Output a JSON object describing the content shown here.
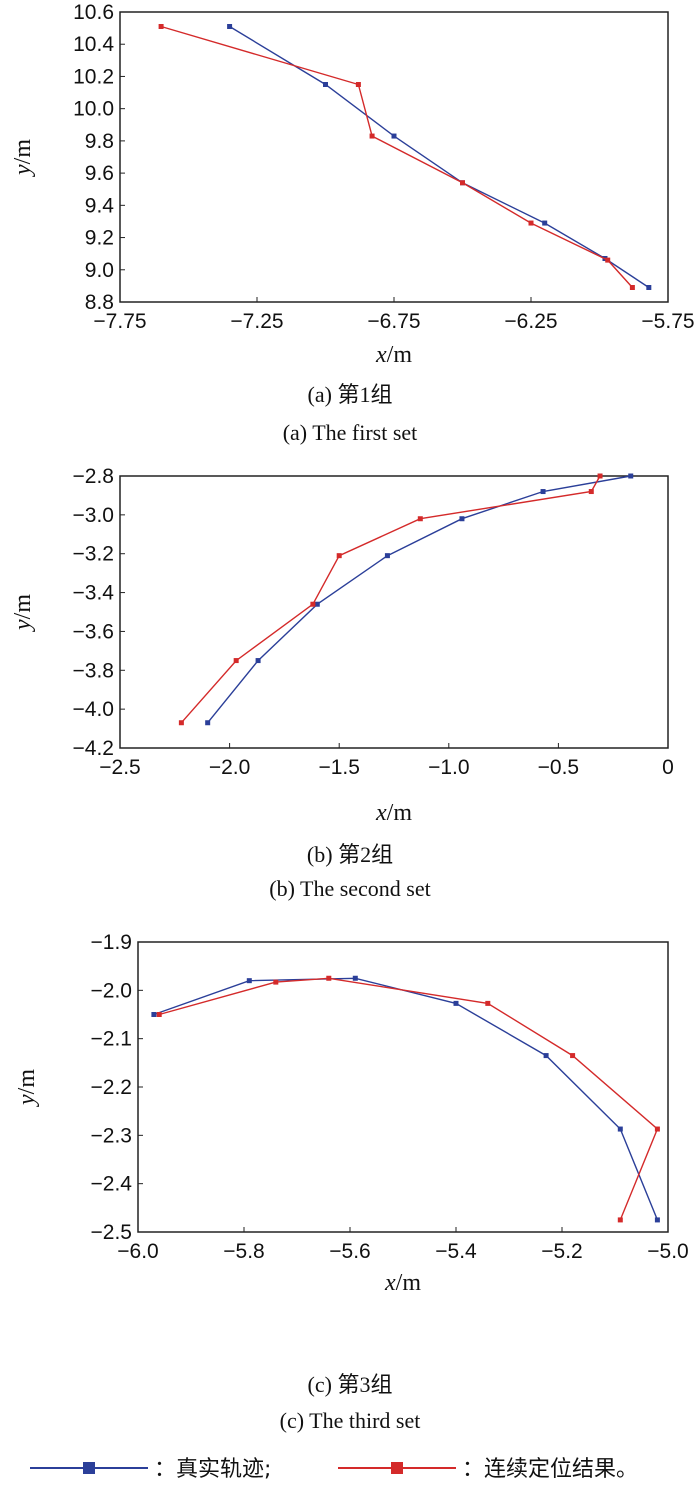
{
  "colors": {
    "true_track": "#2b3f99",
    "positioning": "#d42a2a",
    "axis": "#222222"
  },
  "legend": {
    "true_label": "：真实轨迹;",
    "positioning_label": "：连续定位结果。"
  },
  "chart_data": [
    {
      "type": "line",
      "caption_cn": "(a) 第1组",
      "caption_en": "(a) The first set",
      "xlabel_var": "x",
      "xlabel_unit": "/m",
      "ylabel_var": "y",
      "ylabel_unit": "/m",
      "xlim": [
        -7.75,
        -5.75
      ],
      "ylim": [
        8.8,
        10.6
      ],
      "xticks": [
        -7.75,
        -7.25,
        -6.75,
        -6.25,
        -5.75
      ],
      "xtick_labels": [
        "−7.75",
        "−7.25",
        "−6.75",
        "−6.25",
        "−5.75"
      ],
      "yticks": [
        8.8,
        9.0,
        9.2,
        9.4,
        9.6,
        9.8,
        10.0,
        10.2,
        10.4,
        10.6
      ],
      "ytick_labels": [
        "8.8",
        "9.0",
        "9.2",
        "9.4",
        "9.6",
        "9.8",
        "10.0",
        "10.2",
        "10.4",
        "10.6"
      ],
      "series": [
        {
          "key": "true",
          "x": [
            -7.35,
            -7.0,
            -6.75,
            -6.5,
            -6.2,
            -5.98,
            -5.82
          ],
          "y": [
            10.51,
            10.15,
            9.83,
            9.54,
            9.29,
            9.07,
            8.89
          ]
        },
        {
          "key": "positioning",
          "x": [
            -7.6,
            -6.88,
            -6.83,
            -6.5,
            -6.25,
            -5.97,
            -5.88
          ],
          "y": [
            10.51,
            10.15,
            9.83,
            9.54,
            9.29,
            9.06,
            8.89
          ]
        }
      ]
    },
    {
      "type": "line",
      "caption_cn": "(b) 第2组",
      "caption_en": "(b) The second set",
      "xlabel_var": "x",
      "xlabel_unit": "/m",
      "ylabel_var": "y",
      "ylabel_unit": "/m",
      "xlim": [
        -2.5,
        0
      ],
      "ylim": [
        -4.2,
        -2.8
      ],
      "xticks": [
        -2.5,
        -2.0,
        -1.5,
        -1.0,
        -0.5,
        0
      ],
      "xtick_labels": [
        "−2.5",
        "−2.0",
        "−1.5",
        "−1.0",
        "−0.5",
        "0"
      ],
      "yticks": [
        -4.2,
        -4.0,
        -3.8,
        -3.6,
        -3.4,
        -3.2,
        -3.0,
        -2.8
      ],
      "ytick_labels": [
        "−4.2",
        "−4.0",
        "−3.8",
        "−3.6",
        "−3.4",
        "−3.2",
        "−3.0",
        "−2.8"
      ],
      "series": [
        {
          "key": "true",
          "x": [
            -2.1,
            -1.87,
            -1.6,
            -1.28,
            -0.94,
            -0.57,
            -0.17
          ],
          "y": [
            -4.07,
            -3.75,
            -3.46,
            -3.21,
            -3.02,
            -2.88,
            -2.8
          ]
        },
        {
          "key": "positioning",
          "x": [
            -2.22,
            -1.97,
            -1.62,
            -1.5,
            -1.13,
            -0.35,
            -0.31
          ],
          "y": [
            -4.07,
            -3.75,
            -3.46,
            -3.21,
            -3.02,
            -2.88,
            -2.8
          ]
        }
      ]
    },
    {
      "type": "line",
      "caption_cn": "(c) 第3组",
      "caption_en": "(c) The third set",
      "xlabel_var": "x",
      "xlabel_unit": "/m",
      "ylabel_var": "y",
      "ylabel_unit": "/m",
      "xlim": [
        -6.0,
        -5.0
      ],
      "ylim": [
        -2.5,
        -1.9
      ],
      "xticks": [
        -6.0,
        -5.8,
        -5.6,
        -5.4,
        -5.2,
        -5.0
      ],
      "xtick_labels": [
        "−6.0",
        "−5.8",
        "−5.6",
        "−5.4",
        "−5.2",
        "−5.0"
      ],
      "yticks": [
        -2.5,
        -2.4,
        -2.3,
        -2.2,
        -2.1,
        -2.0,
        -1.9
      ],
      "ytick_labels": [
        "−2.5",
        "−2.4",
        "−2.3",
        "−2.2",
        "−2.1",
        "−2.0",
        "−1.9"
      ],
      "series": [
        {
          "key": "true",
          "x": [
            -5.97,
            -5.79,
            -5.59,
            -5.4,
            -5.23,
            -5.09,
            -5.02
          ],
          "y": [
            -2.05,
            -1.98,
            -1.975,
            -2.027,
            -2.135,
            -2.287,
            -2.475
          ]
        },
        {
          "key": "positioning",
          "x": [
            -5.96,
            -5.74,
            -5.64,
            -5.34,
            -5.18,
            -5.02,
            -5.09
          ],
          "y": [
            -2.05,
            -1.983,
            -1.975,
            -2.027,
            -2.135,
            -2.287,
            -2.475
          ]
        }
      ]
    }
  ]
}
